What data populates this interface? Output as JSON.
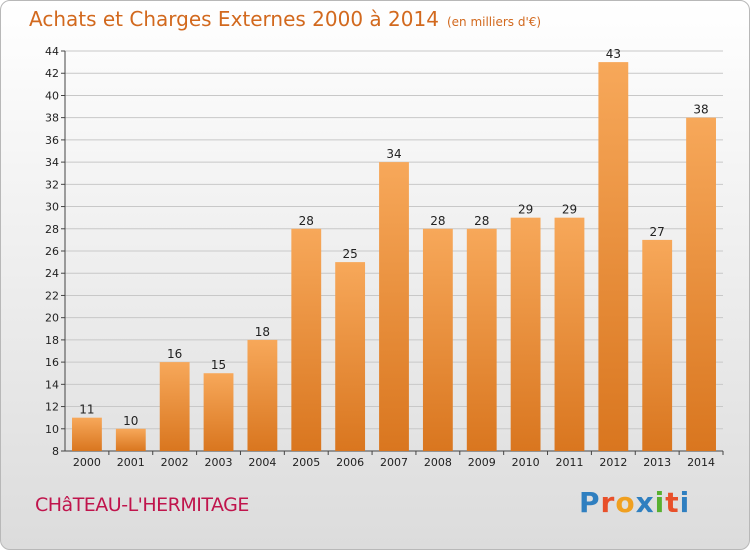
{
  "header": {
    "title": "Achats et Charges Externes 2000 à 2014",
    "subtitle": "(en milliers d'€)"
  },
  "footer": {
    "place": "CHâTEAU-L'HERMITAGE",
    "logo": "Proxiti",
    "logo_colors": [
      "#2f7fc0",
      "#e8502a",
      "#f0a020",
      "#2f7fc0",
      "#58b030",
      "#e8502a",
      "#2f7fc0"
    ]
  },
  "colors": {
    "bar_light": "#f7a85a",
    "bar_dark": "#d9761f",
    "grid": "#c8c8c8",
    "title": "#d2691e"
  },
  "chart_data": {
    "type": "bar",
    "title": "Achats et Charges Externes 2000 à 2014",
    "subtitle": "(en milliers d'€)",
    "categories": [
      "2000",
      "2001",
      "2002",
      "2003",
      "2004",
      "2005",
      "2006",
      "2007",
      "2008",
      "2009",
      "2010",
      "2011",
      "2012",
      "2013",
      "2014"
    ],
    "values": [
      11,
      10,
      16,
      15,
      18,
      28,
      25,
      34,
      28,
      28,
      29,
      29,
      43,
      27,
      38
    ],
    "ylim": [
      8,
      44
    ],
    "yticks": [
      8,
      10,
      12,
      14,
      16,
      18,
      20,
      22,
      24,
      26,
      28,
      30,
      32,
      34,
      36,
      38,
      40,
      42,
      44
    ],
    "grid": true,
    "data_labels": true
  }
}
